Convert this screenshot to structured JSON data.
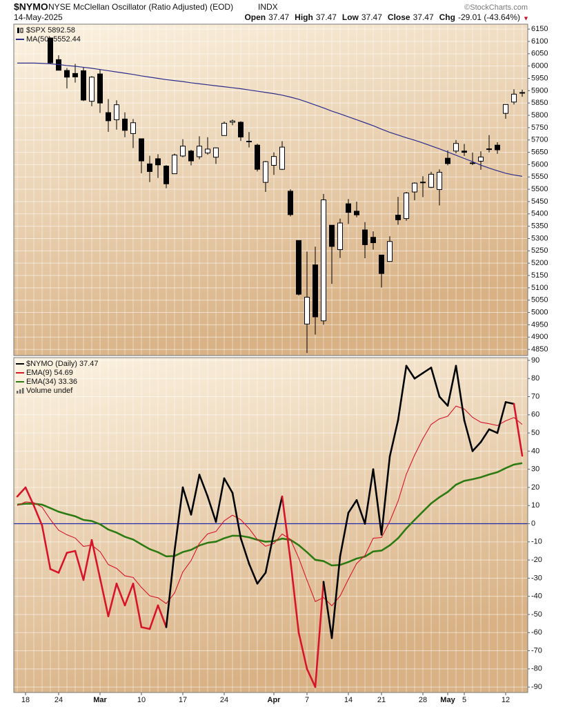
{
  "header": {
    "symbol": "$NYMO",
    "title": "NYSE McClellan Oscillator (Ratio Adjusted) (EOD)",
    "exchange": "INDX",
    "date": "14-May-2025",
    "watermark": "©StockCharts.com",
    "quote": [
      {
        "label": "Open",
        "value": "37.47"
      },
      {
        "label": "High",
        "value": "37.47"
      },
      {
        "label": "Low",
        "value": "37.47"
      },
      {
        "label": "Close",
        "value": "37.47"
      },
      {
        "label": "Chg",
        "value": "-29.01 (-43.64%)"
      }
    ],
    "chg_arrow": "▼"
  },
  "chart_data": [
    {
      "type": "candlestick",
      "name": "$SPX 5892.58",
      "up_color": "#ffffff",
      "down_color": "#000000",
      "open": [
        null,
        null,
        null,
        null,
        6114,
        6026,
        5982,
        5970,
        5981,
        5857,
        5968,
        5811,
        5782,
        5785,
        5726,
        5705,
        5603,
        5624,
        5594,
        5563,
        5635,
        5655,
        5632,
        5647,
        5630,
        5718,
        5772,
        5772,
        5695,
        5679,
        5528,
        5597,
        5581,
        5492,
        5292,
        4953,
        5193,
        4966,
        5354,
        5255,
        5441,
        5411,
        5335,
        5305,
        5233,
        5207,
        5395,
        5381,
        5489,
        5529,
        5508,
        5499,
        5626,
        5655,
        5655,
        5606,
        5614,
        5662,
        5679,
        5808,
        5854,
        5890
      ],
      "high": [
        null,
        null,
        null,
        null,
        6115,
        6044,
        5992,
        6009,
        5994,
        5959,
        5987,
        5866,
        5861,
        5812,
        5785,
        5705,
        5636,
        5642,
        5598,
        5645,
        5703,
        5660,
        5715,
        5711,
        5670,
        5775,
        5783,
        5776,
        5732,
        5685,
        5615,
        5650,
        5695,
        5500,
        5292,
        5247,
        5267,
        5481,
        5354,
        5381,
        5460,
        5450,
        5367,
        5329,
        5233,
        5309,
        5469,
        5489,
        5528,
        5553,
        5571,
        5581,
        5658,
        5700,
        5684,
        5649,
        5654,
        5720,
        5691,
        5845,
        5906,
        5904
      ],
      "low": [
        null,
        null,
        null,
        null,
        6008,
        5986,
        5909,
        5933,
        5858,
        5837,
        5810,
        5733,
        5742,
        5711,
        5667,
        5565,
        5529,
        5546,
        5504,
        5563,
        5630,
        5597,
        5622,
        5640,
        5603,
        5718,
        5760,
        5696,
        5670,
        5572,
        5489,
        5558,
        5578,
        5390,
        5069,
        4835,
        4910,
        4950,
        5116,
        5221,
        5359,
        5386,
        5220,
        5255,
        5101,
        5207,
        5356,
        5372,
        5455,
        5468,
        5505,
        5434,
        5597,
        5646,
        5635,
        5598,
        5579,
        5650,
        5644,
        5786,
        5844,
        5875
      ],
      "close": [
        null,
        null,
        null,
        null,
        6013,
        5983,
        5955,
        5956,
        5862,
        5955,
        5850,
        5778,
        5843,
        5739,
        5770,
        5615,
        5572,
        5599,
        5522,
        5639,
        5675,
        5615,
        5675,
        5663,
        5668,
        5768,
        5777,
        5712,
        5693,
        5581,
        5612,
        5633,
        5671,
        5397,
        5074,
        5062,
        4982,
        5457,
        5268,
        5363,
        5406,
        5396,
        5275,
        5283,
        5158,
        5288,
        5376,
        5485,
        5525,
        5529,
        5561,
        5569,
        5604,
        5686,
        5650,
        5607,
        5631,
        5664,
        5660,
        5844,
        5886,
        5892.58
      ],
      "series": [
        {
          "name": "MA(50) 5552.44",
          "color": "#2b2b8c",
          "values": [
            6012,
            6012,
            6012,
            6011,
            6009,
            6006,
            6002,
            5999,
            5995,
            5991,
            5986,
            5981,
            5976,
            5971,
            5966,
            5960,
            5955,
            5950,
            5945,
            5941,
            5937,
            5932,
            5928,
            5924,
            5920,
            5916,
            5912,
            5908,
            5903,
            5898,
            5893,
            5888,
            5882,
            5874,
            5865,
            5854,
            5842,
            5830,
            5817,
            5806,
            5794,
            5782,
            5770,
            5758,
            5744,
            5731,
            5720,
            5709,
            5699,
            5688,
            5676,
            5664,
            5651,
            5638,
            5625,
            5612,
            5598,
            5586,
            5575,
            5565,
            5558,
            5552.44
          ]
        }
      ],
      "ylim": [
        4825,
        6170
      ],
      "yticks": [
        4850,
        4900,
        4950,
        5000,
        5050,
        5100,
        5150,
        5200,
        5250,
        5300,
        5350,
        5400,
        5450,
        5500,
        5550,
        5600,
        5650,
        5700,
        5750,
        5800,
        5850,
        5900,
        5950,
        6000,
        6050,
        6100,
        6150
      ],
      "grid": true
    },
    {
      "type": "line",
      "categories": [
        null,
        "18",
        null,
        null,
        null,
        "24",
        null,
        null,
        null,
        null,
        "Mar",
        null,
        null,
        null,
        null,
        "10",
        null,
        null,
        null,
        null,
        "17",
        null,
        null,
        null,
        null,
        "24",
        null,
        null,
        null,
        null,
        null,
        "Apr",
        null,
        null,
        null,
        "7",
        null,
        null,
        null,
        null,
        "14",
        null,
        null,
        null,
        "21",
        null,
        null,
        null,
        null,
        "28",
        null,
        null,
        "May",
        null,
        "5",
        null,
        null,
        null,
        null,
        "12",
        null,
        null
      ],
      "series": [
        {
          "name": "$NYMO (Daily) 37.47",
          "color": "#000000",
          "values": [
            15,
            20,
            10,
            -1,
            -25,
            -27,
            -16,
            -15,
            -31,
            -9,
            -30,
            -51,
            -33,
            -45,
            -33,
            -57,
            -58,
            -45,
            -57,
            -15,
            20,
            5,
            27,
            15,
            1,
            25,
            17,
            -8,
            -22,
            -33,
            -27,
            -5,
            15,
            -20,
            -60,
            -80,
            -90,
            -32,
            -63,
            -18,
            6,
            13,
            0,
            30,
            -6,
            37,
            57,
            87,
            80,
            83,
            86,
            70,
            65,
            87,
            57,
            40,
            45,
            52,
            50,
            67,
            66,
            37.47
          ],
          "segment_colors": [
            "#d7142a",
            "#d7142a",
            "#d7142a",
            "#d7142a",
            "#d7142a",
            "#d7142a",
            "#d7142a",
            "#d7142a",
            "#d7142a",
            "#d7142a",
            "#d7142a",
            "#d7142a",
            "#d7142a",
            "#d7142a",
            "#d7142a",
            "#d7142a",
            "#d7142a",
            "#d7142a",
            "#000000",
            "#000000",
            "#000000",
            "#000000",
            "#000000",
            "#000000",
            "#000000",
            "#000000",
            "#000000",
            "#000000",
            "#000000",
            "#000000",
            "#000000",
            "#000000",
            "#d7142a",
            "#d7142a",
            "#d7142a",
            "#d7142a",
            "#d7142a",
            "#000000",
            "#000000",
            "#000000",
            "#000000",
            "#000000",
            "#000000",
            "#000000",
            "#000000",
            "#000000",
            "#000000",
            "#000000",
            "#000000",
            "#000000",
            "#000000",
            "#000000",
            "#000000",
            "#000000",
            "#000000",
            "#000000",
            "#000000",
            "#000000",
            "#000000",
            "#000000",
            "#d7142a"
          ]
        },
        {
          "name": "EMA(9) 54.69",
          "color": "#d7142a",
          "values": [
            10,
            12,
            11.6,
            9.1,
            2.3,
            -3.6,
            -6.1,
            -7.9,
            -12.5,
            -11.8,
            -15.4,
            -22.5,
            -24.6,
            -28.7,
            -29.6,
            -35.1,
            -39.7,
            -40.8,
            -44,
            -38.2,
            -26.6,
            -20.3,
            -10.8,
            -5.6,
            -4.3,
            1.6,
            4.7,
            2.2,
            -2.6,
            -8.7,
            -12.4,
            -10.9,
            -5.7,
            -8.6,
            -18.9,
            -31.1,
            -42.9,
            -40.7,
            -45.2,
            -39.8,
            -30.6,
            -21.9,
            -17.5,
            -8,
            -7.6,
            1.3,
            12.4,
            27.3,
            37.8,
            46.9,
            54.7,
            57.8,
            59.2,
            64.8,
            63.2,
            58.6,
            55.9,
            55.1,
            54.1,
            56.7,
            58.5,
            54.69
          ]
        },
        {
          "name": "EMA(34) 33.36",
          "color": "#2c7a12",
          "values": [
            10.5,
            11,
            11,
            10.5,
            8.6,
            6.6,
            5.3,
            4.1,
            2.1,
            1.5,
            -0.3,
            -3.2,
            -4.9,
            -7.2,
            -8.7,
            -11.4,
            -14,
            -15.7,
            -18,
            -17.8,
            -15.6,
            -14.4,
            -12,
            -10.5,
            -9.9,
            -8,
            -6.6,
            -6.7,
            -7.5,
            -8.9,
            -9.9,
            -9.6,
            -8.2,
            -8.9,
            -11.8,
            -15.7,
            -19.9,
            -20.6,
            -23,
            -22.7,
            -21.1,
            -19.2,
            -18.1,
            -15.3,
            -14.8,
            -11.9,
            -8,
            -2.6,
            2.1,
            6.7,
            11.2,
            14.6,
            17.5,
            21.5,
            23.6,
            24.5,
            25.6,
            27.1,
            28.4,
            30.6,
            32.6,
            33.36
          ]
        }
      ],
      "legend_extra": "Volume undef",
      "reference_line": 0,
      "reference_color": "#1f2aa8",
      "ylim": [
        -93,
        91.5
      ],
      "yticks": [
        -90,
        -80,
        -70,
        -60,
        -50,
        -40,
        -30,
        -20,
        -10,
        0,
        10,
        20,
        30,
        40,
        50,
        60,
        70,
        80,
        90
      ],
      "grid": true
    }
  ]
}
